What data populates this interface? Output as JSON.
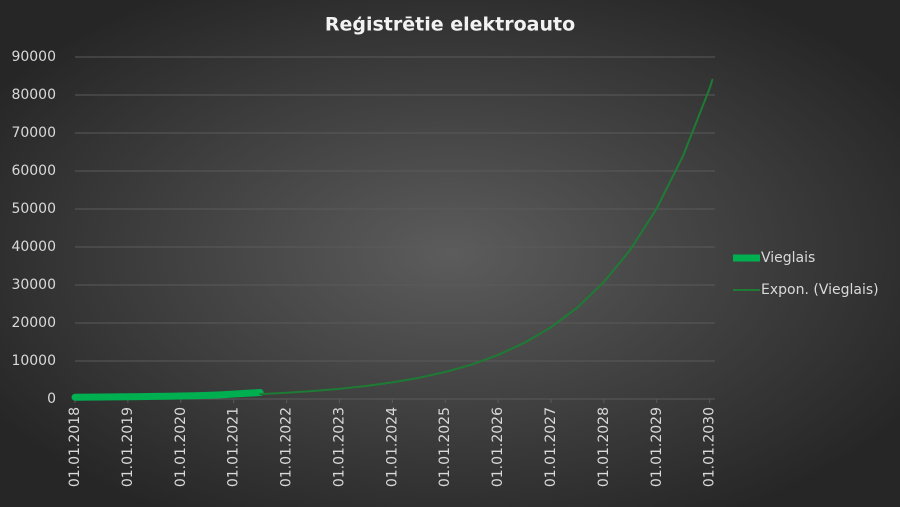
{
  "chart_data": {
    "type": "line",
    "title": "Reģistrētie elektroauto",
    "series": [
      {
        "name": "Vieglais",
        "color": "#00b050",
        "width": 7,
        "x": [
          2018,
          2018.25,
          2018.5,
          2018.75,
          2019,
          2019.25,
          2019.5,
          2019.75,
          2020,
          2020.25,
          2020.5,
          2020.75,
          2021,
          2021.25,
          2021.5
        ],
        "values": [
          450,
          480,
          520,
          560,
          600,
          640,
          680,
          720,
          780,
          850,
          950,
          1100,
          1300,
          1500,
          1700
        ]
      },
      {
        "name": "Expon. (Vieglais)",
        "color": "#1e7b34",
        "width": 2,
        "x": [
          2021.5,
          2022,
          2022.5,
          2023,
          2023.5,
          2024,
          2024.5,
          2025,
          2025.5,
          2026,
          2026.5,
          2027,
          2027.5,
          2028,
          2028.5,
          2029,
          2029.5,
          2030,
          2030.05
        ],
        "values": [
          1290,
          1640,
          2100,
          2680,
          3420,
          4370,
          5570,
          7100,
          9070,
          11600,
          14800,
          18900,
          24100,
          30800,
          39300,
          50200,
          64100,
          81800,
          84000
        ]
      }
    ],
    "xlim": [
      2018,
      2030.1
    ],
    "xticks": [
      {
        "value": 2018,
        "label": "01.01.2018"
      },
      {
        "value": 2019,
        "label": "01.01.2019"
      },
      {
        "value": 2020,
        "label": "01.01.2020"
      },
      {
        "value": 2021,
        "label": "01.01.2021"
      },
      {
        "value": 2022,
        "label": "01.01.2022"
      },
      {
        "value": 2023,
        "label": "01.01.2023"
      },
      {
        "value": 2024,
        "label": "01.01.2024"
      },
      {
        "value": 2025,
        "label": "01.01.2025"
      },
      {
        "value": 2026,
        "label": "01.01.2026"
      },
      {
        "value": 2027,
        "label": "01.01.2027"
      },
      {
        "value": 2028,
        "label": "01.01.2028"
      },
      {
        "value": 2029,
        "label": "01.01.2029"
      },
      {
        "value": 2030,
        "label": "01.01.2030"
      }
    ],
    "ylim": [
      0,
      90000
    ],
    "yticks": [
      0,
      10000,
      20000,
      30000,
      40000,
      50000,
      60000,
      70000,
      80000,
      90000
    ],
    "grid": true,
    "legend": "right"
  }
}
